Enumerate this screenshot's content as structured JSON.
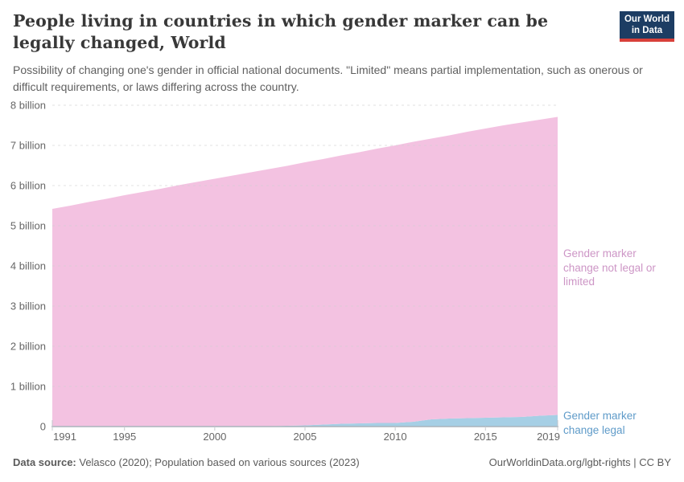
{
  "header": {
    "title": "People living in countries in which gender marker can be legally changed, World",
    "subtitle": "Possibility of changing one's gender in official national documents. \"Limited\" means partial implementation, such as onerous or difficult requirements, or laws differing across the country.",
    "logo": {
      "line1": "Our World",
      "line2": "in Data"
    },
    "logo_colors": {
      "background": "#1d3d63",
      "underline": "#d8403a"
    }
  },
  "chart_data": {
    "type": "area",
    "stacked": true,
    "title": "People living in countries in which gender marker can be legally changed, World",
    "xlabel": "",
    "ylabel": "",
    "grid": true,
    "legend_position": "inline-right",
    "xlim": [
      1991,
      2019
    ],
    "ylim": [
      0,
      8
    ],
    "x": [
      1991,
      1992,
      1993,
      1994,
      1995,
      1996,
      1997,
      1998,
      1999,
      2000,
      2001,
      2002,
      2003,
      2004,
      2005,
      2006,
      2007,
      2008,
      2009,
      2010,
      2011,
      2012,
      2013,
      2014,
      2015,
      2016,
      2017,
      2018,
      2019
    ],
    "series": [
      {
        "name": "Gender marker change legal",
        "unit": "billion people",
        "color": "#a6cfe5",
        "label_color": "#5f9bc9",
        "values": [
          0,
          0,
          0,
          0,
          0,
          0,
          0,
          0,
          0,
          0,
          0,
          0,
          0.01,
          0.02,
          0.03,
          0.05,
          0.07,
          0.08,
          0.09,
          0.09,
          0.12,
          0.18,
          0.2,
          0.21,
          0.22,
          0.23,
          0.24,
          0.27,
          0.29
        ]
      },
      {
        "name": "Gender marker change not legal or limited",
        "unit": "billion people",
        "color": "#f3c2e1",
        "label_color": "#cd96c6",
        "values": [
          5.42,
          5.5,
          5.59,
          5.67,
          5.76,
          5.84,
          5.92,
          6.01,
          6.09,
          6.17,
          6.25,
          6.33,
          6.4,
          6.47,
          6.55,
          6.61,
          6.68,
          6.75,
          6.83,
          6.91,
          6.97,
          6.99,
          7.05,
          7.13,
          7.2,
          7.27,
          7.33,
          7.37,
          7.42
        ]
      }
    ],
    "xticks": [
      1991,
      1995,
      2000,
      2005,
      2010,
      2015,
      2019
    ],
    "yticks": [
      {
        "value": 0,
        "label": "0"
      },
      {
        "value": 1,
        "label": "1 billion"
      },
      {
        "value": 2,
        "label": "2 billion"
      },
      {
        "value": 3,
        "label": "3 billion"
      },
      {
        "value": 4,
        "label": "4 billion"
      },
      {
        "value": 5,
        "label": "5 billion"
      },
      {
        "value": 6,
        "label": "6 billion"
      },
      {
        "value": 7,
        "label": "7 billion"
      },
      {
        "value": 8,
        "label": "8 billion"
      }
    ]
  },
  "footer": {
    "data_source_label": "Data source:",
    "data_source": " Velasco (2020); Population based on various sources (2023)",
    "rights": "OurWorldinData.org/lgbt-rights | CC BY"
  }
}
